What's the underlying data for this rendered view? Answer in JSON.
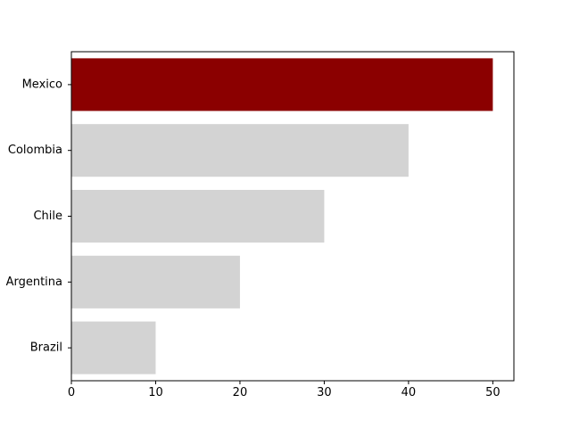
{
  "chart_data": {
    "type": "bar",
    "orientation": "horizontal",
    "categories": [
      "Brazil",
      "Argentina",
      "Chile",
      "Colombia",
      "Mexico"
    ],
    "values": [
      10,
      20,
      30,
      40,
      50
    ],
    "highlight": "Mexico",
    "xlim": [
      0,
      52.5
    ],
    "xticks": [
      0,
      10,
      20,
      30,
      40,
      50
    ],
    "title": "",
    "xlabel": "",
    "ylabel": "",
    "grid": false,
    "colors": {
      "default_bar": "#d3d3d3",
      "highlight_bar": "#8b0000",
      "axis": "#000000"
    }
  }
}
